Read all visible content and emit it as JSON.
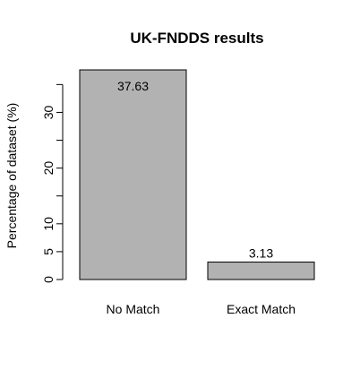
{
  "chart_data": {
    "type": "bar",
    "title": "UK-FNDDS results",
    "xlabel": "",
    "ylabel": "Percentage of dataset (%)",
    "categories": [
      "No Match",
      "Exact Match"
    ],
    "values": [
      37.63,
      3.13
    ],
    "data_labels": [
      "37.63",
      "3.13"
    ],
    "y_major_ticks": [
      0,
      10,
      20,
      30
    ],
    "y_minor_ticks": [
      5,
      15,
      25,
      35
    ],
    "y_tick_labels": [
      "0",
      "5",
      "10",
      "20",
      "30"
    ],
    "y_labeled_ticks": [
      0,
      5,
      10,
      20,
      30
    ],
    "ylim": [
      0,
      37.63
    ],
    "bar_color": "#b2b2b2",
    "grid": false,
    "legend": "none"
  }
}
